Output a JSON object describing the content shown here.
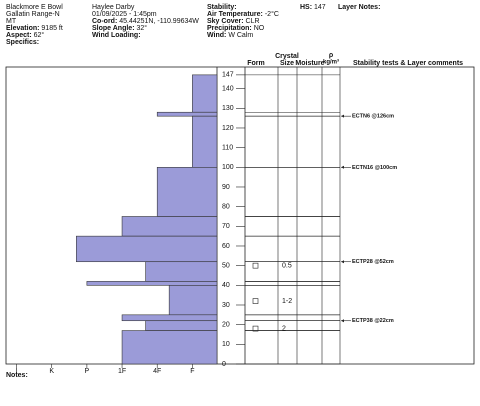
{
  "header": {
    "col1": [
      "Blackmore E Bowl",
      "Gallatin Range-N",
      "MT"
    ],
    "col2": [
      "Haylee Darby",
      "01/09/2025 - 1:45pm"
    ],
    "fields": [
      {
        "label": "Co-ord:",
        "value": "45.44251N, -110.99634W"
      },
      {
        "label": "Elevation:",
        "value": "9185 ft"
      },
      {
        "label": "Slope Angle:",
        "value": "32°"
      },
      {
        "label": "Aspect:",
        "value": "62°"
      },
      {
        "label": "Wind Loading:",
        "value": ""
      },
      {
        "label": "Specifics:",
        "value": ""
      },
      {
        "label": "Stability:",
        "value": ""
      },
      {
        "label": "Air Temperature:",
        "value": "-2°C"
      },
      {
        "label": "Sky Cover:",
        "value": "CLR"
      },
      {
        "label": "Precipitation:",
        "value": "NO"
      },
      {
        "label": "Wind:",
        "value": "W Calm"
      },
      {
        "label": "HS:",
        "value": "147"
      },
      {
        "label": "Layer Notes:",
        "value": ""
      }
    ],
    "columns": {
      "crystal": "Crystal",
      "form": "Form",
      "size": "Size",
      "moisture": "Moisture",
      "rho": "ρ",
      "density_unit": "kg/m³",
      "stability": "Stability tests & Layer comments"
    }
  },
  "chart_data": {
    "type": "snow_profile",
    "ylim": [
      0,
      151
    ],
    "yticks": [
      0,
      10,
      20,
      30,
      40,
      50,
      60,
      70,
      80,
      90,
      100,
      110,
      120,
      130,
      140,
      147
    ],
    "xlim": [
      6.3,
      0.3
    ],
    "xticks": [
      {
        "value": 6,
        "label": "I"
      },
      {
        "value": 5,
        "label": "K"
      },
      {
        "value": 4,
        "label": "P"
      },
      {
        "value": 3,
        "label": "1F"
      },
      {
        "value": 2,
        "label": "4F"
      },
      {
        "value": 1,
        "label": "F"
      }
    ],
    "color": "#9b9bd8",
    "layers": [
      {
        "top": 147,
        "bottom": 128,
        "hardness": 1
      },
      {
        "top": 128,
        "bottom": 126,
        "hardness": 2
      },
      {
        "top": 126,
        "bottom": 100,
        "hardness": 1
      },
      {
        "top": 100,
        "bottom": 75,
        "hardness": 2
      },
      {
        "top": 75,
        "bottom": 65,
        "hardness": 3
      },
      {
        "top": 65,
        "bottom": 52,
        "hardness": 4.3
      },
      {
        "top": 52,
        "bottom": 42,
        "hardness": 2.33
      },
      {
        "top": 42,
        "bottom": 40,
        "hardness": 4
      },
      {
        "top": 40,
        "bottom": 25,
        "hardness": 1.66
      },
      {
        "top": 25,
        "bottom": 22,
        "hardness": 3
      },
      {
        "top": 22,
        "bottom": 17,
        "hardness": 2.33
      },
      {
        "top": 17,
        "bottom": 0,
        "hardness": 3
      }
    ],
    "grains": [
      {
        "depth": 50,
        "size": "0.5"
      },
      {
        "depth": 32,
        "size": "1-2"
      },
      {
        "depth": 18,
        "size": "2"
      }
    ],
    "tests": [
      {
        "depth": 126,
        "label": "ECTN6 @126cm"
      },
      {
        "depth": 100,
        "label": "ECTN16 @100cm"
      },
      {
        "depth": 52,
        "label": "ECTP28 @52cm"
      },
      {
        "depth": 22,
        "label": "ECTP38 @22cm"
      }
    ]
  },
  "footer": {
    "notes": "Notes:"
  }
}
